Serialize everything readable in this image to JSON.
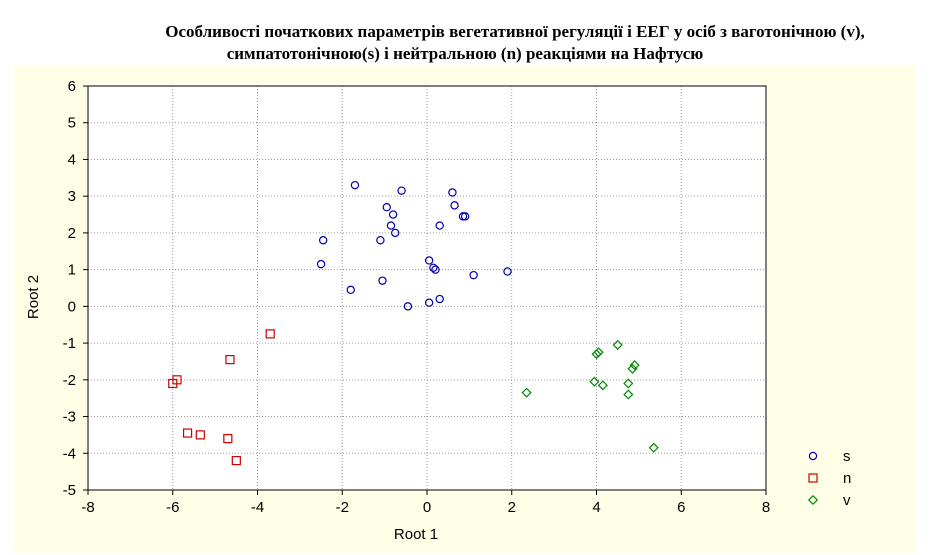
{
  "chart_data": {
    "type": "scatter",
    "title_lines": [
      "Особливості початкових параметрів вегетативної регуляції і ЕЕГ у осіб з ваготонічною (v),",
      "симпатотонічною(s) і нейтральною (n) реакціями на Нафтусю"
    ],
    "xlabel": "Root 1",
    "ylabel": "Root 2",
    "xlim": [
      -8,
      8
    ],
    "ylim": [
      -5,
      6
    ],
    "xticks": [
      "-8",
      "-6",
      "-4",
      "-2",
      "0",
      "2",
      "4",
      "6",
      "8"
    ],
    "yticks": [
      "-5",
      "-4",
      "-3",
      "-2",
      "-1",
      "0",
      "1",
      "2",
      "3",
      "4",
      "5",
      "6"
    ],
    "grid": true,
    "legend_position": "bottom-right",
    "background_color": "#ffffe8",
    "series": [
      {
        "name": "s",
        "marker": "circle",
        "color": "#0000aa",
        "points": [
          [
            -1.7,
            3.3
          ],
          [
            -0.6,
            3.15
          ],
          [
            0.6,
            3.1
          ],
          [
            0.65,
            2.75
          ],
          [
            -0.95,
            2.7
          ],
          [
            -0.8,
            2.5
          ],
          [
            0.85,
            2.45
          ],
          [
            0.9,
            2.45
          ],
          [
            -0.85,
            2.2
          ],
          [
            -0.75,
            2.0
          ],
          [
            0.3,
            2.2
          ],
          [
            -2.45,
            1.8
          ],
          [
            -1.1,
            1.8
          ],
          [
            0.05,
            1.25
          ],
          [
            0.15,
            1.05
          ],
          [
            0.2,
            1.0
          ],
          [
            -2.5,
            1.15
          ],
          [
            1.1,
            0.85
          ],
          [
            1.9,
            0.95
          ],
          [
            -1.05,
            0.7
          ],
          [
            -1.8,
            0.45
          ],
          [
            -0.45,
            0.0
          ],
          [
            0.05,
            0.1
          ],
          [
            0.3,
            0.2
          ]
        ]
      },
      {
        "name": "n",
        "marker": "square",
        "color": "#cc0000",
        "points": [
          [
            -3.7,
            -0.75
          ],
          [
            -4.65,
            -1.45
          ],
          [
            -5.9,
            -2.0
          ],
          [
            -6.0,
            -2.1
          ],
          [
            -5.65,
            -3.45
          ],
          [
            -5.35,
            -3.5
          ],
          [
            -4.7,
            -3.6
          ],
          [
            -4.5,
            -4.2
          ]
        ]
      },
      {
        "name": "v",
        "marker": "diamond",
        "color": "#008800",
        "points": [
          [
            4.5,
            -1.05
          ],
          [
            4.05,
            -1.25
          ],
          [
            4.0,
            -1.3
          ],
          [
            4.9,
            -1.6
          ],
          [
            4.85,
            -1.7
          ],
          [
            3.95,
            -2.05
          ],
          [
            4.75,
            -2.1
          ],
          [
            4.15,
            -2.15
          ],
          [
            2.35,
            -2.35
          ],
          [
            4.75,
            -2.4
          ],
          [
            5.35,
            -3.85
          ]
        ]
      }
    ]
  }
}
